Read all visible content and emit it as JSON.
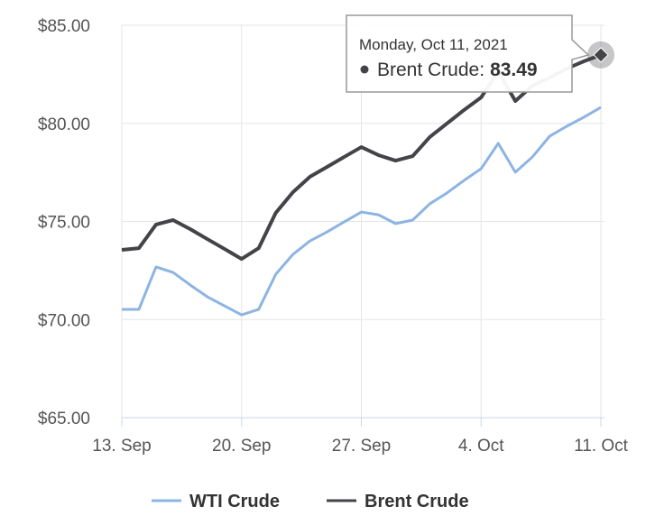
{
  "chart_data": {
    "type": "line",
    "categories": [
      "13. Sep",
      null,
      null,
      null,
      null,
      null,
      null,
      "20. Sep",
      null,
      null,
      null,
      null,
      null,
      null,
      "27. Sep",
      null,
      null,
      null,
      null,
      null,
      null,
      "4. Oct",
      null,
      null,
      null,
      null,
      null,
      null,
      "11. Oct"
    ],
    "series": [
      {
        "name": "WTI Crude",
        "color": "#8db4e2",
        "values": [
          70.52,
          70.52,
          72.68,
          72.4,
          71.76,
          71.16,
          70.7,
          70.24,
          70.52,
          72.31,
          73.32,
          74.01,
          74.47,
          74.98,
          75.48,
          75.34,
          74.89,
          75.07,
          75.9,
          76.45,
          77.09,
          77.69,
          78.98,
          77.51,
          78.29,
          79.34,
          79.85,
          80.31,
          80.82
        ]
      },
      {
        "name": "Brent Crude",
        "color": "#434348",
        "values": [
          73.55,
          73.64,
          74.84,
          75.07,
          74.61,
          74.1,
          73.6,
          73.09,
          73.64,
          75.44,
          76.49,
          77.28,
          77.78,
          78.29,
          78.79,
          78.38,
          78.1,
          78.33,
          79.3,
          79.99,
          80.68,
          81.32,
          82.66,
          81.14,
          81.92,
          82.33,
          82.79,
          83.16,
          83.49
        ]
      }
    ],
    "ylim": [
      65,
      85
    ],
    "yticks": [
      {
        "value": 65,
        "label": "$65.00"
      },
      {
        "value": 70,
        "label": "$70.00"
      },
      {
        "value": 75,
        "label": "$75.00"
      },
      {
        "value": 80,
        "label": "$80.00"
      },
      {
        "value": 85,
        "label": "$85.00"
      }
    ],
    "grid": true,
    "legend": "bottom",
    "tooltip": {
      "date": "Monday, Oct 11, 2021",
      "label": "Brent Crude:",
      "series": 1,
      "index": 28
    }
  }
}
